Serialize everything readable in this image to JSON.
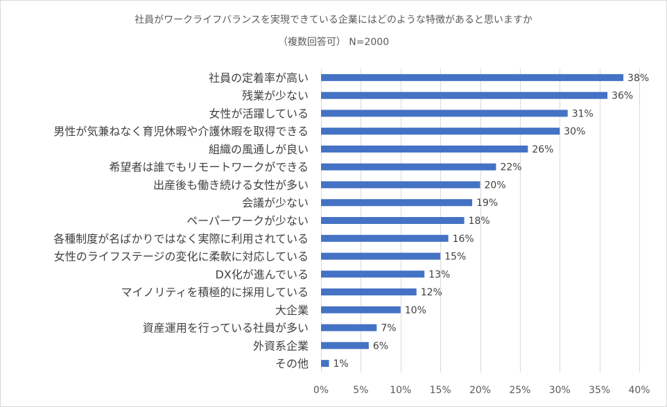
{
  "chart_data": {
    "type": "bar",
    "orientation": "horizontal",
    "title": "社員がワークライフバランスを実現できている企業にはどのような特徴があると思いますか",
    "subtitle": "（複数回答可） N=2000",
    "categories": [
      "社員の定着率が高い",
      "残業が少ない",
      "女性が活躍している",
      "男性が気兼ねなく育児休暇や介護休暇を取得できる",
      "組織の風通しが良い",
      "希望者は誰でもリモートワークができる",
      "出産後も働き続ける女性が多い",
      "会議が少ない",
      "ペーパーワークが少ない",
      "各種制度が名ばかりではなく実際に利用されている",
      "女性のライフステージの変化に柔軟に対応している",
      "DX化が進んでいる",
      "マイノリティを積極的に採用している",
      "大企業",
      "資産運用を行っている社員が多い",
      "外資系企業",
      "その他"
    ],
    "values": [
      38,
      36,
      31,
      30,
      26,
      22,
      20,
      19,
      18,
      16,
      15,
      13,
      12,
      10,
      7,
      6,
      1
    ],
    "value_labels": [
      "38%",
      "36%",
      "31%",
      "30%",
      "26%",
      "22%",
      "20%",
      "19%",
      "18%",
      "16%",
      "15%",
      "13%",
      "12%",
      "10%",
      "7%",
      "6%",
      "1%"
    ],
    "xlim": [
      0,
      40
    ],
    "xticks": [
      0,
      5,
      10,
      15,
      20,
      25,
      30,
      35,
      40
    ],
    "xtick_labels": [
      "0%",
      "5%",
      "10%",
      "15%",
      "20%",
      "25%",
      "30%",
      "35%",
      "40%"
    ],
    "xlabel": "",
    "ylabel": "",
    "grid": true,
    "bar_color": "#4472c4",
    "grid_color": "#d9d9d9"
  }
}
